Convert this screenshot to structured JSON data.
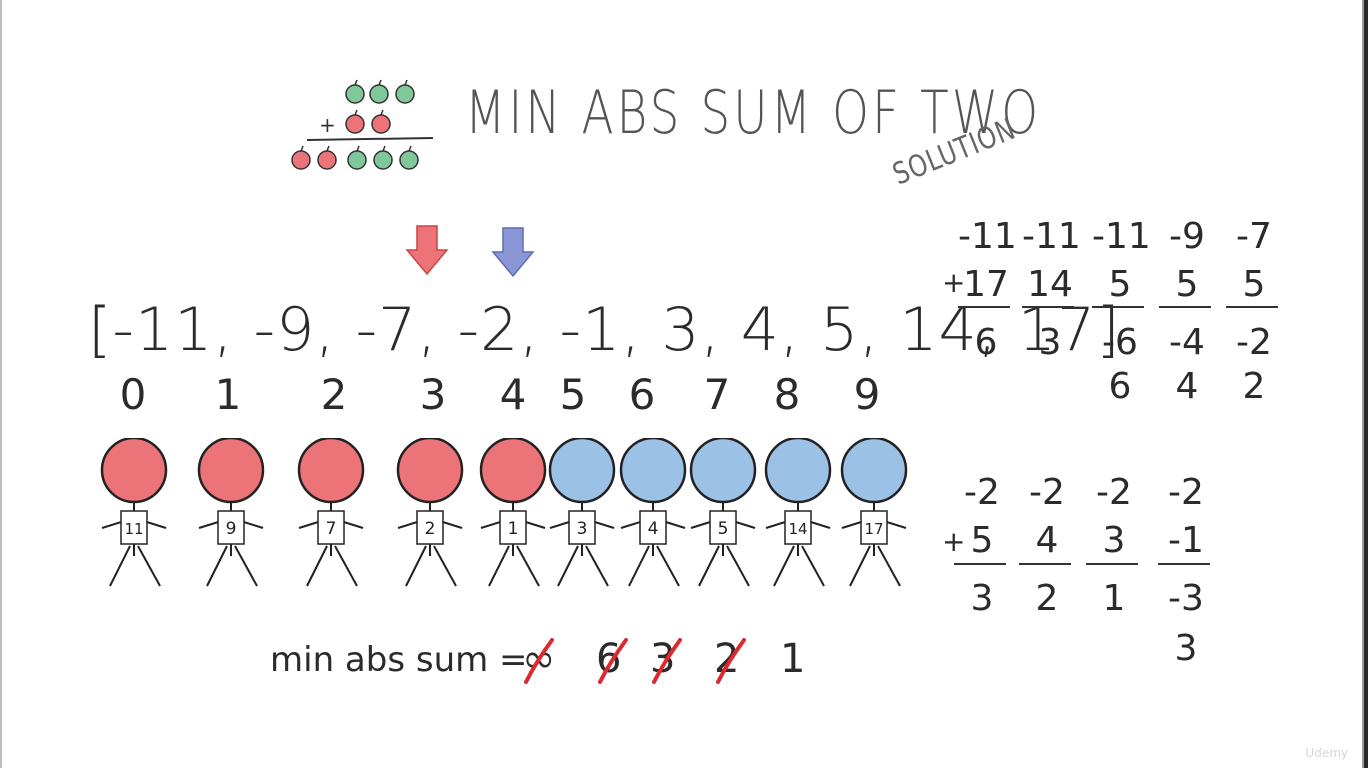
{
  "title": "MIN ABS SUM OF TWO",
  "subtitle": "SOLUTION",
  "logo": {
    "plus": "+"
  },
  "array_text": "[-11, -9, -7, -2, -1, 3, 4, 5, 14, 17]",
  "indices": [
    "0",
    "1",
    "2",
    "3",
    "4",
    "5",
    "6",
    "7",
    "8",
    "9"
  ],
  "people": [
    {
      "label": "11",
      "color": "#ec7479"
    },
    {
      "label": "9",
      "color": "#ec7479"
    },
    {
      "label": "7",
      "color": "#ec7479"
    },
    {
      "label": "2",
      "color": "#ec7479"
    },
    {
      "label": "1",
      "color": "#ec7479"
    },
    {
      "label": "3",
      "color": "#9cc1e6"
    },
    {
      "label": "4",
      "color": "#9cc1e6"
    },
    {
      "label": "5",
      "color": "#9cc1e6"
    },
    {
      "label": "14",
      "color": "#9cc1e6"
    },
    {
      "label": "17",
      "color": "#9cc1e6"
    }
  ],
  "pointers": {
    "left_color": "#ec7479",
    "right_color": "#8a96d6"
  },
  "calc_top": {
    "plus": "+",
    "a": [
      "-11",
      "-11",
      "-11",
      "-9",
      "-7"
    ],
    "b": [
      "17",
      "14",
      "5",
      "5",
      "5"
    ],
    "sum": [
      "6",
      "3",
      "-6",
      "-4",
      "-2"
    ],
    "abs": [
      "6",
      "4",
      "2"
    ]
  },
  "calc_bottom": {
    "plus": "+",
    "a": [
      "-2",
      "-2",
      "-2",
      "-2"
    ],
    "b": [
      "5",
      "4",
      "3",
      "-1"
    ],
    "sum": [
      "3",
      "2",
      "1",
      "-3"
    ],
    "abs": [
      "3"
    ]
  },
  "min_abs_sum": {
    "label": "min abs sum =",
    "history": [
      "∞",
      "6",
      "3",
      "2"
    ],
    "current": "1",
    "strike_color": "#e0262e"
  },
  "watermark": "Udemy"
}
